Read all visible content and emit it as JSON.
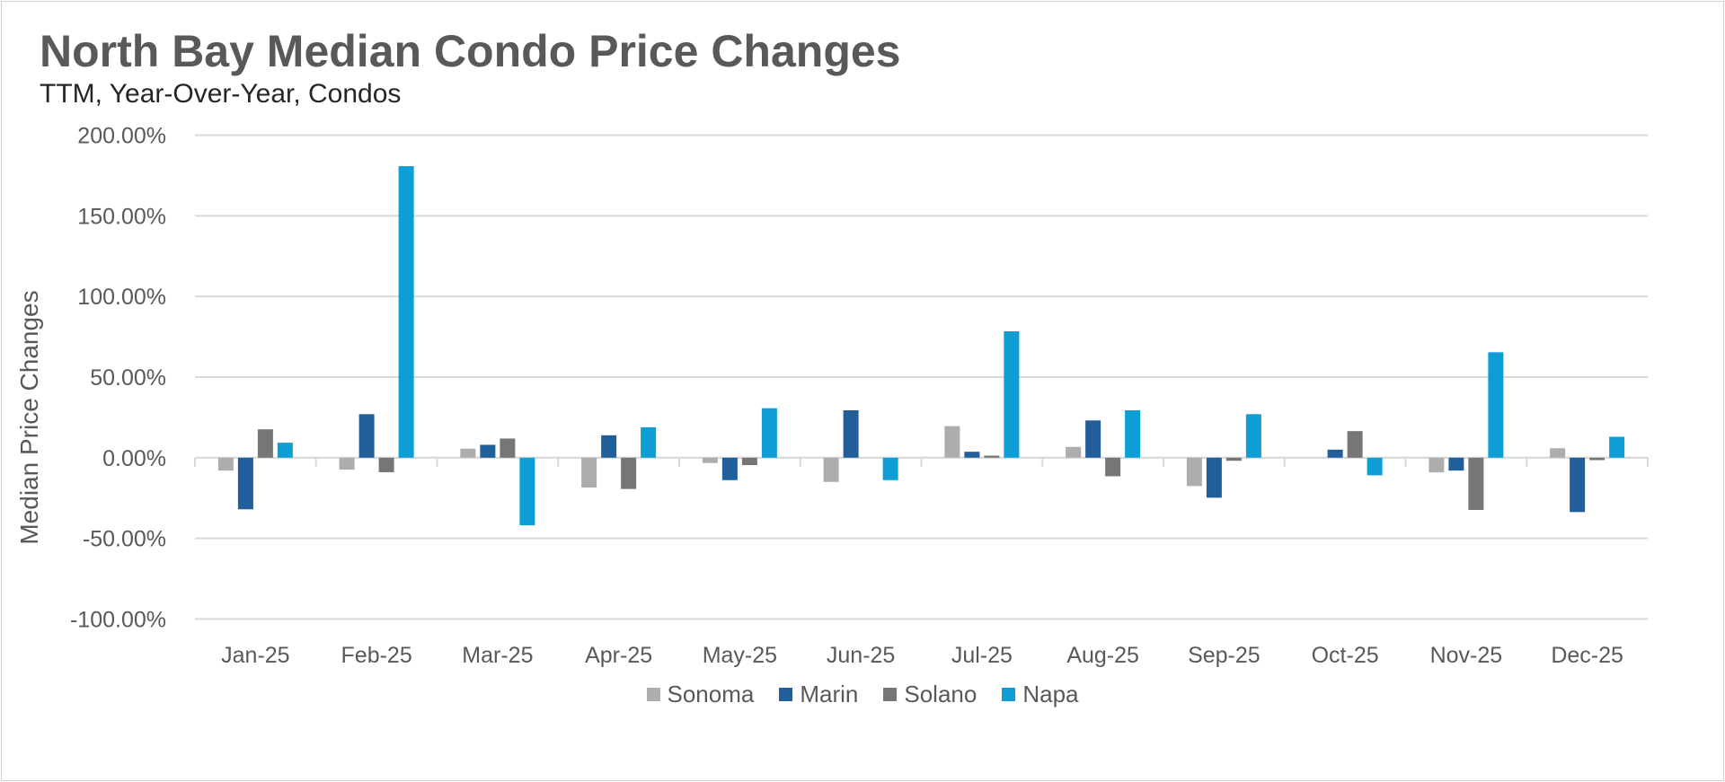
{
  "chart_data": {
    "type": "bar",
    "title": "North Bay Median Condo Price Changes",
    "subtitle": "TTM, Year-Over-Year,  Condos",
    "xlabel": "",
    "ylabel": "Median Price Changes",
    "ylim": [
      -100,
      200
    ],
    "yticks": [
      200,
      150,
      100,
      50,
      0,
      -50,
      -100
    ],
    "ytick_labels": [
      "200.00%",
      "150.00%",
      "100.00%",
      "50.00%",
      "0.00%",
      "-50.00%",
      "-100.00%"
    ],
    "grid": true,
    "legend_position": "bottom",
    "categories": [
      "Jan-25",
      "Feb-25",
      "Mar-25",
      "Apr-25",
      "May-25",
      "Jun-25",
      "Jul-25",
      "Aug-25",
      "Sep-25",
      "Oct-25",
      "Nov-25",
      "Dec-25"
    ],
    "series": [
      {
        "name": "Sonoma",
        "color": "#ADADAD",
        "values": [
          -8,
          -7.4,
          5.6,
          -18.5,
          -3.3,
          -15,
          19.6,
          6.7,
          -17.6,
          0,
          -9.1,
          5.9
        ]
      },
      {
        "name": "Marin",
        "color": "#215F9A",
        "values": [
          -32,
          27,
          8,
          13.9,
          -13.9,
          29.4,
          3.7,
          23.1,
          -24.8,
          5,
          -8,
          -33.7
        ]
      },
      {
        "name": "Solano",
        "color": "#767676",
        "values": [
          17.6,
          -9,
          11.9,
          -19.4,
          -4.6,
          0,
          1.3,
          -11.5,
          -1.9,
          16.5,
          -32.4,
          -1.5
        ]
      },
      {
        "name": "Napa",
        "color": "#0E9ED5",
        "values": [
          9.3,
          180.8,
          -41.9,
          18.9,
          30.7,
          -13.9,
          78.4,
          29.4,
          27,
          -10.9,
          65.4,
          13
        ]
      }
    ]
  }
}
